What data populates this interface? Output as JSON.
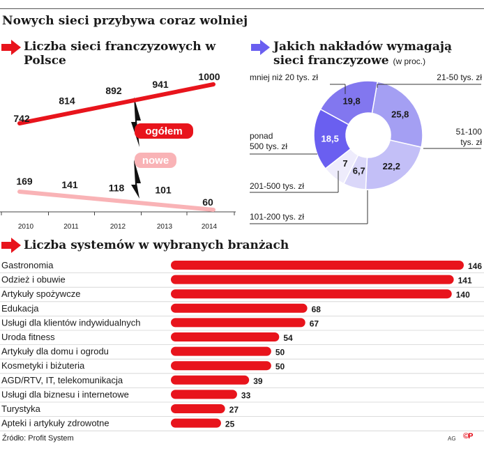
{
  "title": "Nowych sieci przybywa coraz wolniej",
  "source": "Źródło: Profit System",
  "author": "AG",
  "brand": "©P",
  "colors": {
    "red": "#e8141c",
    "pink": "#f9b3b6",
    "purple": "#6a5ff0",
    "purple_mid": "#9a92f2",
    "purple_light": "#c9c5f7",
    "purple_pale": "#ebe9fb"
  },
  "chart_data": [
    {
      "type": "line",
      "title": "Liczba sieci franczyzowych w Polsce",
      "x": [
        "2010",
        "2011",
        "2012",
        "2013",
        "2014"
      ],
      "series": [
        {
          "name": "ogółem",
          "values": [
            742,
            814,
            892,
            941,
            1000
          ],
          "labels": [
            "742",
            "814",
            "892",
            "941",
            "1000"
          ],
          "color": "#e8141c"
        },
        {
          "name": "nowe",
          "values": [
            169,
            141,
            118,
            101,
            60
          ],
          "labels": [
            "169",
            "141",
            "118",
            "101",
            "60"
          ],
          "color": "#f9b3b6"
        }
      ],
      "grid": false
    },
    {
      "type": "pie",
      "title": "Jakich nakładów wymagają sieci franczyzowe",
      "subtitle": "(w proc.)",
      "slices": [
        {
          "label": "mniej niż 20 tys. zł",
          "value": 18.5,
          "value_label": "18,5",
          "color": "#6a5ff0",
          "value_color": "#ffffff"
        },
        {
          "label": "21-50 tys. zł",
          "value": 19.8,
          "value_label": "19,8",
          "color": "#8277ef",
          "value_color": "#1a1a1a"
        },
        {
          "label": "51-100 tys. zł",
          "value": 25.8,
          "value_label": "25,8",
          "color": "#a49ff3",
          "value_color": "#1a1a1a"
        },
        {
          "label": "101-200 tys. zł",
          "value": 22.2,
          "value_label": "22,2",
          "color": "#c3bff7",
          "value_color": "#1a1a1a"
        },
        {
          "label": "201-500 tys. zł",
          "value": 6.7,
          "value_label": "6,7",
          "color": "#dad7f9",
          "value_color": "#1a1a1a"
        },
        {
          "label": "ponad 500 tys. zł",
          "value": 7,
          "value_label": "7",
          "color": "#eeecfc",
          "value_color": "#1a1a1a"
        }
      ]
    },
    {
      "type": "bar",
      "title": "Liczba systemów w wybranych branżach",
      "orientation": "horizontal",
      "categories": [
        "Gastronomia",
        "Odzież i obuwie",
        "Artykuły spożywcze",
        "Edukacja",
        "Usługi dla klientów indywidualnych",
        "Uroda fitness",
        "Artykuły dla domu i ogrodu",
        "Kosmetyki i biżuteria",
        "AGD/RTV, IT, telekomunikacja",
        "Usługi dla biznesu i internetowe",
        "Turystyka",
        "Apteki i artykuły zdrowotne"
      ],
      "values": [
        146,
        141,
        140,
        68,
        67,
        54,
        50,
        50,
        39,
        33,
        27,
        25
      ],
      "color": "#e8141c"
    }
  ]
}
